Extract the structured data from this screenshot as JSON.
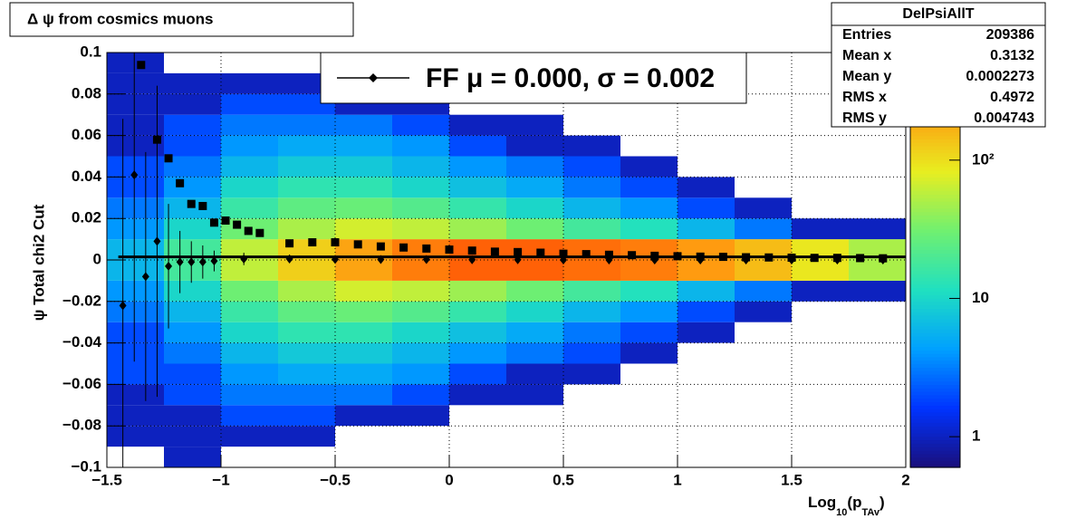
{
  "chart_data": {
    "type": "heatmap",
    "title": "Δ ψ from cosmics muons",
    "y_label": "ψ  Total chi2 Cut",
    "x_label_parts": [
      "Log",
      "10",
      "(p",
      "TAv",
      ")"
    ],
    "xlim": [
      -1.5,
      2
    ],
    "ylim": [
      -0.1,
      0.1
    ],
    "xticks": [
      {
        "value": -1.5,
        "label": "−1.5"
      },
      {
        "value": -1,
        "label": "−1"
      },
      {
        "value": -0.5,
        "label": "−0.5"
      },
      0,
      0.5,
      1,
      1.5,
      2
    ],
    "yticks": [
      {
        "value": -0.1,
        "label": "−0.1"
      },
      {
        "value": -0.08,
        "label": "−0.08"
      },
      {
        "value": -0.06,
        "label": "−0.06"
      },
      {
        "value": -0.04,
        "label": "−0.04"
      },
      {
        "value": -0.02,
        "label": "−0.02"
      },
      0,
      0.02,
      0.04,
      0.06,
      0.08,
      0.1
    ],
    "grid": true,
    "zlog": true,
    "zlim": [
      0.6,
      600
    ],
    "zticks": [
      1,
      10,
      {
        "value": 100,
        "label": "10²"
      }
    ],
    "colormap": [
      "#1a0f7a",
      "#0033ff",
      "#00a0ff",
      "#20e0c0",
      "#70f070",
      "#e8ee20",
      "#ff9a10",
      "#ff3a00"
    ],
    "x_bins": [
      -1.5,
      -1.25,
      -1,
      -0.75,
      -0.5,
      -0.25,
      0,
      0.25,
      0.5,
      0.75,
      1,
      1.25,
      1.5,
      1.75,
      2
    ],
    "y_bins": [
      -0.1,
      -0.09,
      -0.08,
      -0.07,
      -0.06,
      -0.05,
      -0.04,
      -0.03,
      -0.02,
      -0.01,
      0,
      0.01,
      0.02,
      0.03,
      0.04,
      0.05,
      0.06,
      0.07,
      0.08,
      0.09,
      0.1
    ],
    "counts": [
      [
        0,
        1,
        1,
        1,
        2,
        2,
        2,
        3,
        4,
        6,
        6,
        4,
        3,
        2,
        2,
        1,
        1,
        1,
        1,
        1
      ],
      [
        1,
        1,
        1,
        2,
        2,
        3,
        4,
        6,
        10,
        18,
        18,
        10,
        6,
        4,
        3,
        2,
        2,
        1,
        1,
        0
      ],
      [
        0,
        1,
        2,
        3,
        4,
        6,
        10,
        16,
        30,
        60,
        60,
        30,
        16,
        10,
        6,
        4,
        3,
        2,
        1,
        0
      ],
      [
        0,
        1,
        2,
        3,
        5,
        8,
        14,
        25,
        50,
        120,
        120,
        50,
        25,
        14,
        8,
        5,
        3,
        2,
        1,
        0
      ],
      [
        0,
        0,
        1,
        3,
        5,
        8,
        14,
        28,
        70,
        200,
        200,
        70,
        28,
        14,
        8,
        5,
        3,
        1,
        1,
        0
      ],
      [
        0,
        0,
        1,
        2,
        4,
        6,
        10,
        22,
        60,
        300,
        300,
        60,
        22,
        10,
        6,
        4,
        2,
        1,
        0,
        0
      ],
      [
        0,
        0,
        0,
        1,
        2,
        4,
        7,
        15,
        45,
        400,
        400,
        45,
        15,
        7,
        4,
        2,
        1,
        0,
        0,
        0
      ],
      [
        0,
        0,
        0,
        1,
        1,
        3,
        5,
        10,
        30,
        400,
        400,
        30,
        10,
        5,
        3,
        1,
        1,
        0,
        0,
        0
      ],
      [
        0,
        0,
        0,
        0,
        1,
        2,
        3,
        6,
        18,
        350,
        350,
        18,
        6,
        3,
        2,
        1,
        0,
        0,
        0,
        0
      ],
      [
        0,
        0,
        0,
        0,
        0,
        1,
        2,
        4,
        12,
        300,
        300,
        12,
        4,
        2,
        1,
        0,
        0,
        0,
        0,
        0
      ],
      [
        0,
        0,
        0,
        0,
        0,
        0,
        1,
        2,
        6,
        220,
        220,
        6,
        2,
        1,
        0,
        0,
        0,
        0,
        0,
        0
      ],
      [
        0,
        0,
        0,
        0,
        0,
        0,
        0,
        1,
        3,
        150,
        150,
        3,
        1,
        0,
        0,
        0,
        0,
        0,
        0,
        0
      ],
      [
        0,
        0,
        0,
        0,
        0,
        0,
        0,
        0,
        1,
        90,
        90,
        1,
        0,
        0,
        0,
        0,
        0,
        0,
        0,
        0
      ],
      [
        0,
        0,
        0,
        0,
        0,
        0,
        0,
        0,
        1,
        50,
        50,
        1,
        0,
        0,
        0,
        0,
        0,
        0,
        0,
        0
      ]
    ],
    "squares": {
      "x": [
        -1.35,
        -1.28,
        -1.23,
        -1.18,
        -1.13,
        -1.08,
        -1.03,
        -0.98,
        -0.93,
        -0.88,
        -0.83,
        -0.7,
        -0.6,
        -0.5,
        -0.4,
        -0.3,
        -0.2,
        -0.1,
        0,
        0.1,
        0.2,
        0.3,
        0.4,
        0.5,
        0.6,
        0.7,
        0.8,
        0.9,
        1,
        1.1,
        1.2,
        1.3,
        1.4,
        1.5,
        1.6,
        1.7,
        1.8,
        1.9
      ],
      "values": [
        0.094,
        0.058,
        0.049,
        0.037,
        0.027,
        0.026,
        0.018,
        0.019,
        0.017,
        0.014,
        0.013,
        0.008,
        0.0085,
        0.0085,
        0.0075,
        0.0065,
        0.006,
        0.0055,
        0.005,
        0.0045,
        0.004,
        0.0038,
        0.0035,
        0.003,
        0.0028,
        0.0025,
        0.0023,
        0.002,
        0.0018,
        0.0016,
        0.0015,
        0.0013,
        0.0012,
        0.0011,
        0.001,
        0.001,
        0.0009,
        0.0008
      ]
    },
    "diamonds": {
      "x": [
        -1.43,
        -1.38,
        -1.33,
        -1.28,
        -1.23,
        -1.18,
        -1.13,
        -1.08,
        -1.03,
        -0.9,
        -0.7,
        -0.5,
        -0.3,
        -0.1,
        0.1,
        0.3,
        0.5,
        0.7,
        0.9,
        1.1,
        1.3,
        1.5,
        1.7,
        1.9
      ],
      "values": [
        -0.022,
        0.041,
        -0.008,
        0.009,
        -0.003,
        -0.001,
        -0.001,
        -0.001,
        -0.0005,
        0.0005,
        0.0005,
        0.0003,
        0.0002,
        0.0002,
        0.0001,
        0.0001,
        0,
        0,
        0,
        0,
        0,
        0,
        0,
        0
      ],
      "errors": [
        0.09,
        0.09,
        0.06,
        0.075,
        0.03,
        0.015,
        0.01,
        0.008,
        0.005,
        0.003,
        0.002,
        0.001,
        0.001,
        0.001,
        0.0005,
        0.0005,
        0.0005,
        0.0005,
        0.0005,
        0.0005,
        0.0005,
        0.0005,
        0.0005,
        0.0005
      ]
    },
    "fit_line": {
      "x": [
        -1.45,
        2
      ],
      "values": [
        0.0015,
        0.0015
      ]
    },
    "legend": "FF μ =  0.000, σ =   0.002",
    "stats": {
      "title": "DelPsiAllT",
      "rows": [
        [
          "Entries",
          "209386"
        ],
        [
          "Mean x",
          "0.3132"
        ],
        [
          "Mean y",
          "0.0002273"
        ],
        [
          "RMS x",
          "0.4972"
        ],
        [
          "RMS y",
          "0.004743"
        ]
      ]
    }
  }
}
